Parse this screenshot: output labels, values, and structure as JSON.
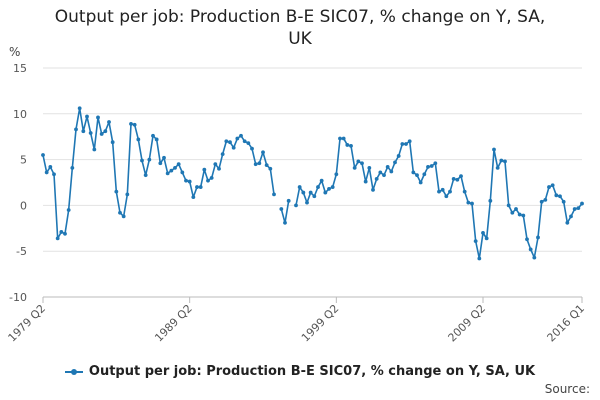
{
  "chart_data": {
    "type": "line",
    "title_lines": [
      "Output per job: Production B-E SIC07, % change on Y, SA,",
      "UK"
    ],
    "ylabel": "%",
    "xlabel": "",
    "ylim": [
      -10,
      15
    ],
    "yticks": [
      15,
      10,
      5,
      0,
      -5,
      -10
    ],
    "xtick_labels": [
      "1979 Q2",
      "1989 Q2",
      "1999 Q2",
      "2009 Q2",
      "2016 Q1"
    ],
    "grid": true,
    "legend_position": "bottom",
    "series_color": "#1f77b4",
    "series": [
      {
        "name": "Output per job: Production B-E SIC07, % change on Y, SA, UK",
        "segments": [
          [
            [
              "1979 Q2",
              5.5
            ],
            [
              "1979 Q3",
              3.6
            ],
            [
              "1979 Q4",
              4.2
            ],
            [
              "1980 Q1",
              3.4
            ],
            [
              "1980 Q2",
              -3.6
            ],
            [
              "1980 Q3",
              -2.9
            ],
            [
              "1980 Q4",
              -3.1
            ],
            [
              "1981 Q1",
              -0.5
            ],
            [
              "1981 Q2",
              4.1
            ],
            [
              "1981 Q3",
              8.3
            ],
            [
              "1981 Q4",
              10.6
            ],
            [
              "1982 Q1",
              8.1
            ],
            [
              "1982 Q2",
              9.7
            ],
            [
              "1982 Q3",
              7.9
            ],
            [
              "1982 Q4",
              6.1
            ],
            [
              "1983 Q1",
              9.6
            ],
            [
              "1983 Q2",
              7.8
            ],
            [
              "1983 Q3",
              8.1
            ],
            [
              "1983 Q4",
              9.1
            ],
            [
              "1984 Q1",
              6.9
            ],
            [
              "1984 Q2",
              1.5
            ],
            [
              "1984 Q3",
              -0.8
            ],
            [
              "1984 Q4",
              -1.2
            ],
            [
              "1985 Q1",
              1.2
            ],
            [
              "1985 Q2",
              8.9
            ],
            [
              "1985 Q3",
              8.8
            ],
            [
              "1985 Q4",
              7.2
            ],
            [
              "1986 Q1",
              4.9
            ],
            [
              "1986 Q2",
              3.3
            ],
            [
              "1986 Q3",
              5.0
            ],
            [
              "1986 Q4",
              7.6
            ],
            [
              "1987 Q1",
              7.2
            ],
            [
              "1987 Q2",
              4.6
            ],
            [
              "1987 Q3",
              5.2
            ],
            [
              "1987 Q4",
              3.5
            ],
            [
              "1988 Q1",
              3.8
            ],
            [
              "1988 Q2",
              4.1
            ],
            [
              "1988 Q3",
              4.5
            ],
            [
              "1988 Q4",
              3.6
            ],
            [
              "1989 Q1",
              2.7
            ],
            [
              "1989 Q2",
              2.6
            ],
            [
              "1989 Q3",
              0.9
            ],
            [
              "1989 Q4",
              2.0
            ],
            [
              "1990 Q1",
              2.0
            ],
            [
              "1990 Q2",
              3.9
            ],
            [
              "1990 Q3",
              2.7
            ],
            [
              "1990 Q4",
              3.0
            ],
            [
              "1991 Q1",
              4.5
            ],
            [
              "1991 Q2",
              4.0
            ],
            [
              "1991 Q3",
              5.6
            ],
            [
              "1991 Q4",
              7.0
            ],
            [
              "1992 Q1",
              6.9
            ],
            [
              "1992 Q2",
              6.3
            ],
            [
              "1992 Q3",
              7.3
            ],
            [
              "1992 Q4",
              7.6
            ],
            [
              "1993 Q1",
              7.0
            ],
            [
              "1993 Q2",
              6.8
            ],
            [
              "1993 Q3",
              6.2
            ],
            [
              "1993 Q4",
              4.5
            ],
            [
              "1994 Q1",
              4.6
            ],
            [
              "1994 Q2",
              5.8
            ],
            [
              "1994 Q3",
              4.4
            ],
            [
              "1994 Q4",
              4.0
            ],
            [
              "1995 Q1",
              1.2
            ]
          ],
          [
            [
              "1995 Q3",
              -0.4
            ],
            [
              "1995 Q4",
              -1.9
            ],
            [
              "1996 Q1",
              0.5
            ]
          ],
          [
            [
              "1996 Q3",
              0.0
            ],
            [
              "1996 Q4",
              2.0
            ],
            [
              "1997 Q1",
              1.4
            ],
            [
              "1997 Q2",
              0.3
            ],
            [
              "1997 Q3",
              1.4
            ],
            [
              "1997 Q4",
              1.0
            ],
            [
              "1998 Q1",
              2.0
            ],
            [
              "1998 Q2",
              2.7
            ],
            [
              "1998 Q3",
              1.4
            ],
            [
              "1998 Q4",
              1.8
            ],
            [
              "1999 Q1",
              2.0
            ],
            [
              "1999 Q2",
              3.4
            ],
            [
              "1999 Q3",
              7.3
            ],
            [
              "1999 Q4",
              7.3
            ],
            [
              "2000 Q1",
              6.6
            ],
            [
              "2000 Q2",
              6.5
            ],
            [
              "2000 Q3",
              4.1
            ],
            [
              "2000 Q4",
              4.8
            ],
            [
              "2001 Q1",
              4.6
            ],
            [
              "2001 Q2",
              2.6
            ],
            [
              "2001 Q3",
              4.1
            ],
            [
              "2001 Q4",
              1.7
            ],
            [
              "2002 Q1",
              2.9
            ],
            [
              "2002 Q2",
              3.6
            ],
            [
              "2002 Q3",
              3.3
            ],
            [
              "2002 Q4",
              4.2
            ],
            [
              "2003 Q1",
              3.7
            ],
            [
              "2003 Q2",
              4.7
            ],
            [
              "2003 Q3",
              5.4
            ],
            [
              "2003 Q4",
              6.7
            ],
            [
              "2004 Q1",
              6.7
            ],
            [
              "2004 Q2",
              7.0
            ],
            [
              "2004 Q3",
              3.6
            ],
            [
              "2004 Q4",
              3.3
            ],
            [
              "2005 Q1",
              2.5
            ],
            [
              "2005 Q2",
              3.4
            ],
            [
              "2005 Q3",
              4.2
            ],
            [
              "2005 Q4",
              4.3
            ],
            [
              "2006 Q1",
              4.6
            ],
            [
              "2006 Q2",
              1.5
            ],
            [
              "2006 Q3",
              1.7
            ],
            [
              "2006 Q4",
              1.0
            ],
            [
              "2007 Q1",
              1.5
            ],
            [
              "2007 Q2",
              2.9
            ],
            [
              "2007 Q3",
              2.8
            ],
            [
              "2007 Q4",
              3.2
            ],
            [
              "2008 Q1",
              1.5
            ],
            [
              "2008 Q2",
              0.3
            ],
            [
              "2008 Q3",
              0.2
            ],
            [
              "2008 Q4",
              -3.9
            ],
            [
              "2009 Q1",
              -5.8
            ],
            [
              "2009 Q2",
              -3.0
            ],
            [
              "2009 Q3",
              -3.6
            ],
            [
              "2009 Q4",
              0.5
            ],
            [
              "2010 Q1",
              6.1
            ],
            [
              "2010 Q2",
              4.1
            ],
            [
              "2010 Q3",
              4.9
            ],
            [
              "2010 Q4",
              4.8
            ],
            [
              "2011 Q1",
              0.0
            ],
            [
              "2011 Q2",
              -0.8
            ],
            [
              "2011 Q3",
              -0.4
            ],
            [
              "2011 Q4",
              -1.0
            ],
            [
              "2012 Q1",
              -1.1
            ],
            [
              "2012 Q2",
              -3.7
            ],
            [
              "2012 Q3",
              -4.8
            ],
            [
              "2012 Q4",
              -5.7
            ],
            [
              "2013 Q1",
              -3.5
            ],
            [
              "2013 Q2",
              0.4
            ],
            [
              "2013 Q3",
              0.6
            ],
            [
              "2013 Q4",
              2.0
            ],
            [
              "2014 Q1",
              2.2
            ],
            [
              "2014 Q2",
              1.1
            ],
            [
              "2014 Q3",
              1.0
            ],
            [
              "2014 Q4",
              0.4
            ],
            [
              "2015 Q1",
              -1.9
            ],
            [
              "2015 Q2",
              -1.2
            ],
            [
              "2015 Q3",
              -0.4
            ],
            [
              "2015 Q4",
              -0.3
            ],
            [
              "2016 Q1",
              0.2
            ]
          ]
        ]
      }
    ]
  },
  "footer": {
    "source_label": "Source:"
  }
}
